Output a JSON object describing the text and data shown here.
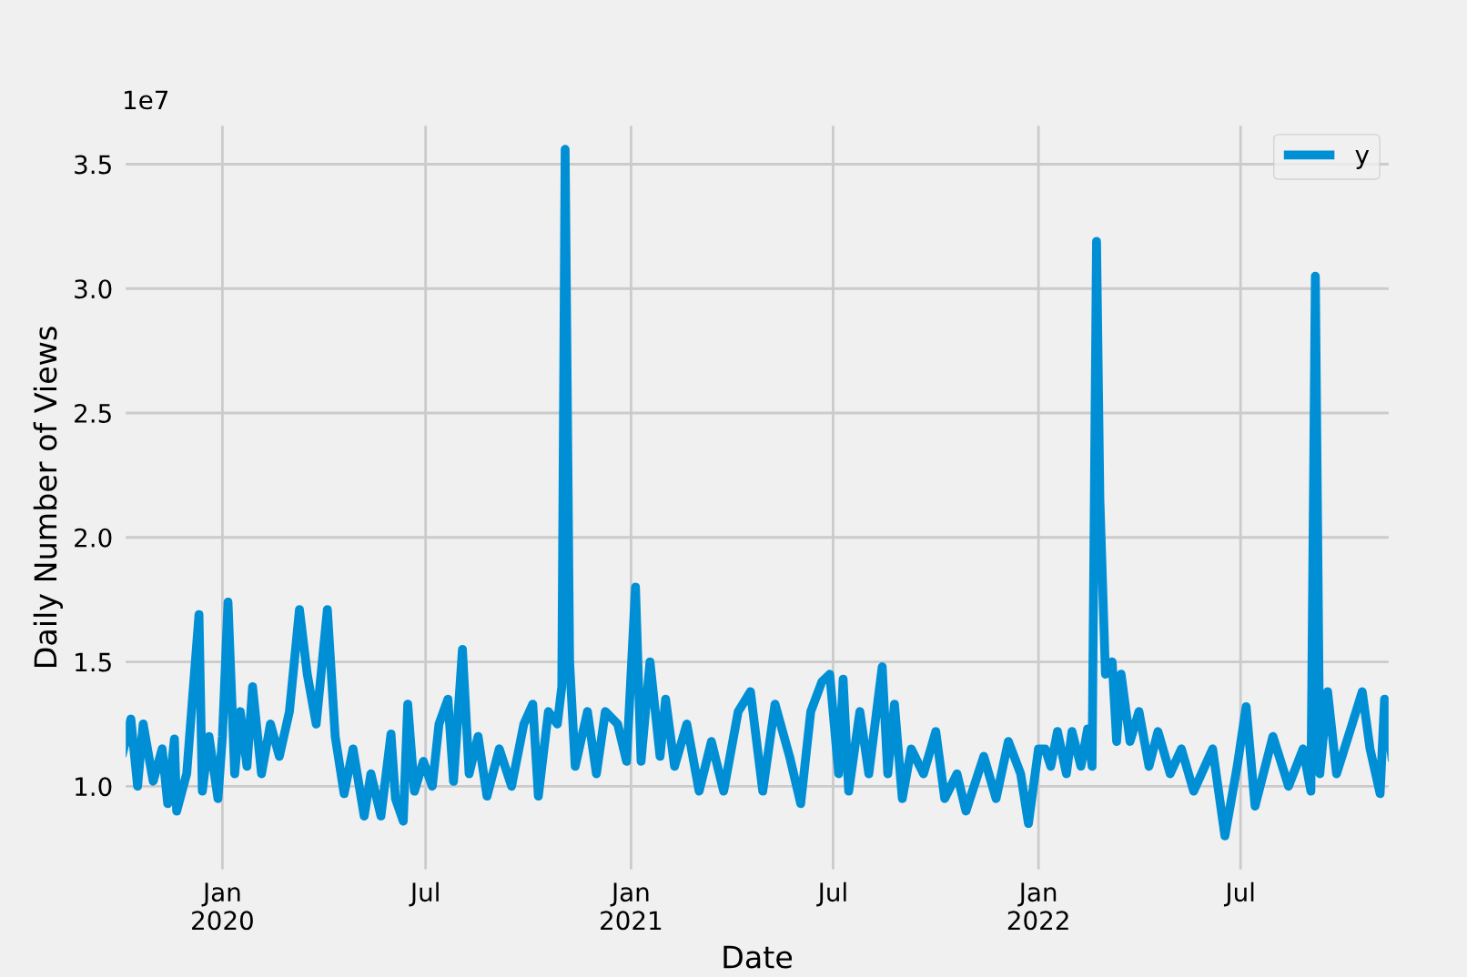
{
  "chart_data": {
    "type": "line",
    "xlabel": "Date",
    "ylabel": "Daily Number of Views",
    "annotations": [
      "1e7"
    ],
    "x": [
      "2019-10-03",
      "2019-10-11",
      "2019-10-17",
      "2019-10-22",
      "2019-10-31",
      "2019-11-08",
      "2019-11-13",
      "2019-11-19",
      "2019-11-21",
      "2019-11-30",
      "2019-12-11",
      "2019-12-14",
      "2019-12-20",
      "2019-12-28",
      "2020-01-01",
      "2020-01-06",
      "2020-01-12",
      "2020-01-17",
      "2020-01-23",
      "2020-01-28",
      "2020-02-05",
      "2020-02-13",
      "2020-02-21",
      "2020-03-01",
      "2020-03-10",
      "2020-03-17",
      "2020-03-25",
      "2020-04-04",
      "2020-04-11",
      "2020-04-19",
      "2020-04-27",
      "2020-05-07",
      "2020-05-13",
      "2020-05-22",
      "2020-05-31",
      "2020-06-04",
      "2020-06-11",
      "2020-06-15",
      "2020-06-21",
      "2020-06-29",
      "2020-07-07",
      "2020-07-13",
      "2020-07-21",
      "2020-07-26",
      "2020-08-03",
      "2020-08-09",
      "2020-08-17",
      "2020-08-25",
      "2020-09-05",
      "2020-09-16",
      "2020-09-27",
      "2020-10-05",
      "2020-10-10",
      "2020-10-19",
      "2020-10-27",
      "2020-10-31",
      "2020-11-03",
      "2020-11-07",
      "2020-11-12",
      "2020-11-23",
      "2020-12-01",
      "2020-12-09",
      "2020-12-20",
      "2020-12-28",
      "2021-01-05",
      "2021-01-10",
      "2021-01-18",
      "2021-01-27",
      "2021-02-01",
      "2021-02-09",
      "2021-02-20",
      "2021-03-03",
      "2021-03-14",
      "2021-03-25",
      "2021-04-07",
      "2021-04-18",
      "2021-04-29",
      "2021-05-10",
      "2021-05-23",
      "2021-06-02",
      "2021-06-11",
      "2021-06-21",
      "2021-06-28",
      "2021-07-06",
      "2021-07-10",
      "2021-07-15",
      "2021-07-25",
      "2021-08-02",
      "2021-08-14",
      "2021-08-19",
      "2021-08-25",
      "2021-09-01",
      "2021-09-09",
      "2021-09-20",
      "2021-10-01",
      "2021-10-09",
      "2021-10-20",
      "2021-10-28",
      "2021-11-13",
      "2021-11-24",
      "2021-12-05",
      "2021-12-16",
      "2021-12-23",
      "2022-01-01",
      "2022-01-07",
      "2022-01-12",
      "2022-01-18",
      "2022-01-26",
      "2022-01-31",
      "2022-02-08",
      "2022-02-14",
      "2022-02-18",
      "2022-02-22",
      "2022-02-25",
      "2022-03-02",
      "2022-03-08",
      "2022-03-12",
      "2022-03-16",
      "2022-03-24",
      "2022-04-01",
      "2022-04-10",
      "2022-04-18",
      "2022-04-29",
      "2022-05-09",
      "2022-05-20",
      "2022-06-06",
      "2022-06-17",
      "2022-06-28",
      "2022-07-06",
      "2022-07-14",
      "2022-07-30",
      "2022-08-13",
      "2022-08-26",
      "2022-09-02",
      "2022-09-06",
      "2022-09-10",
      "2022-09-17",
      "2022-09-25",
      "2022-10-09",
      "2022-10-18",
      "2022-10-25",
      "2022-11-03",
      "2022-11-07",
      "2022-11-14"
    ],
    "series": [
      {
        "name": "y",
        "color": "#008fd5",
        "values": [
          1.12,
          1.27,
          1.0,
          1.25,
          1.02,
          1.15,
          0.93,
          1.19,
          0.9,
          1.05,
          1.69,
          0.98,
          1.2,
          0.95,
          1.2,
          1.74,
          1.05,
          1.3,
          1.08,
          1.4,
          1.05,
          1.25,
          1.12,
          1.3,
          1.71,
          1.45,
          1.25,
          1.71,
          1.2,
          0.97,
          1.15,
          0.88,
          1.05,
          0.88,
          1.21,
          0.95,
          0.86,
          1.33,
          0.98,
          1.1,
          1.0,
          1.25,
          1.35,
          1.02,
          1.55,
          1.05,
          1.2,
          0.96,
          1.15,
          1.0,
          1.25,
          1.33,
          0.96,
          1.3,
          1.25,
          1.4,
          3.56,
          1.5,
          1.08,
          1.3,
          1.05,
          1.3,
          1.25,
          1.1,
          1.8,
          1.1,
          1.5,
          1.12,
          1.35,
          1.08,
          1.25,
          0.98,
          1.18,
          0.98,
          1.3,
          1.38,
          0.98,
          1.33,
          1.12,
          0.93,
          1.3,
          1.42,
          1.45,
          1.05,
          1.43,
          0.98,
          1.3,
          1.05,
          1.48,
          1.05,
          1.33,
          0.95,
          1.15,
          1.05,
          1.22,
          0.95,
          1.05,
          0.9,
          1.12,
          0.95,
          1.18,
          1.05,
          0.85,
          1.15,
          1.15,
          1.08,
          1.22,
          1.05,
          1.22,
          1.08,
          1.23,
          1.08,
          3.19,
          2.15,
          1.45,
          1.5,
          1.18,
          1.45,
          1.18,
          1.3,
          1.08,
          1.22,
          1.05,
          1.15,
          0.98,
          1.15,
          0.8,
          1.08,
          1.32,
          0.92,
          1.2,
          1.0,
          1.15,
          0.98,
          3.05,
          1.05,
          1.38,
          1.05,
          1.25,
          1.38,
          1.15,
          0.97,
          1.35,
          1.1
        ]
      }
    ],
    "xlim": [
      "2019-10-03",
      "2022-11-14"
    ],
    "ylim": [
      0.65,
      3.67
    ],
    "xticks": [
      {
        "value": "2020-01-01",
        "label": "Jan\n2020"
      },
      {
        "value": "2020-07-01",
        "label": "Jul"
      },
      {
        "value": "2021-01-01",
        "label": "Jan\n2021"
      },
      {
        "value": "2021-07-01",
        "label": "Jul"
      },
      {
        "value": "2022-01-01",
        "label": "Jan\n2022"
      },
      {
        "value": "2022-07-01",
        "label": "Jul"
      }
    ],
    "yticks": [
      {
        "value": 1.0,
        "label": "1.0"
      },
      {
        "value": 1.5,
        "label": "1.5"
      },
      {
        "value": 2.0,
        "label": "2.0"
      },
      {
        "value": 2.5,
        "label": "2.5"
      },
      {
        "value": 3.0,
        "label": "3.0"
      },
      {
        "value": 3.5,
        "label": "3.5"
      }
    ],
    "grid": true,
    "legend": "top right",
    "line_style": "solid",
    "marker": "none"
  }
}
